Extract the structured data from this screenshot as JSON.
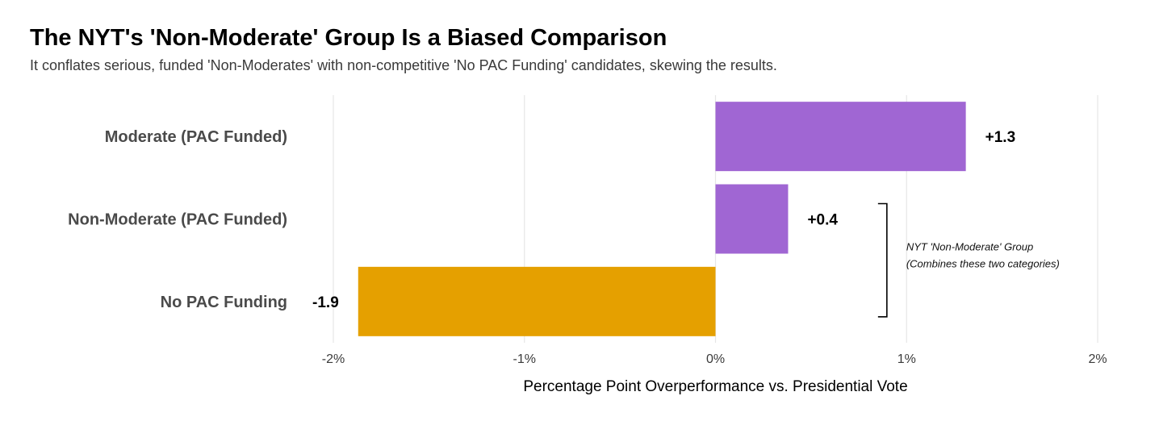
{
  "chart_data": {
    "type": "bar",
    "orientation": "horizontal",
    "title": "The NYT's 'Non-Moderate' Group Is a Biased Comparison",
    "subtitle": "It conflates serious, funded 'Non-Moderates' with non-competitive 'No PAC Funding' candidates, skewing the results.",
    "xlabel": "Percentage Point Overperformance vs. Presidential Vote",
    "ylabel": "",
    "xlim": [
      -2,
      2
    ],
    "xticks": [
      -2,
      -1,
      0,
      1,
      2
    ],
    "xtick_labels": [
      "-2%",
      "-1%",
      "0%",
      "1%",
      "2%"
    ],
    "grid": true,
    "categories": [
      "Moderate (PAC Funded)",
      "Non-Moderate (PAC Funded)",
      "No PAC Funding"
    ],
    "values": [
      1.31,
      0.38,
      -1.87
    ],
    "value_labels": [
      "+1.3",
      "+0.4",
      "-1.9"
    ],
    "bar_colors": [
      "#a066d3",
      "#a066d3",
      "#e5a000"
    ],
    "annotation": {
      "lines": [
        "NYT 'Non-Moderate' Group",
        "(Combines these two categories)"
      ],
      "spans_categories": [
        "Non-Moderate (PAC Funded)",
        "No PAC Funding"
      ],
      "at_x": 0.88
    }
  }
}
